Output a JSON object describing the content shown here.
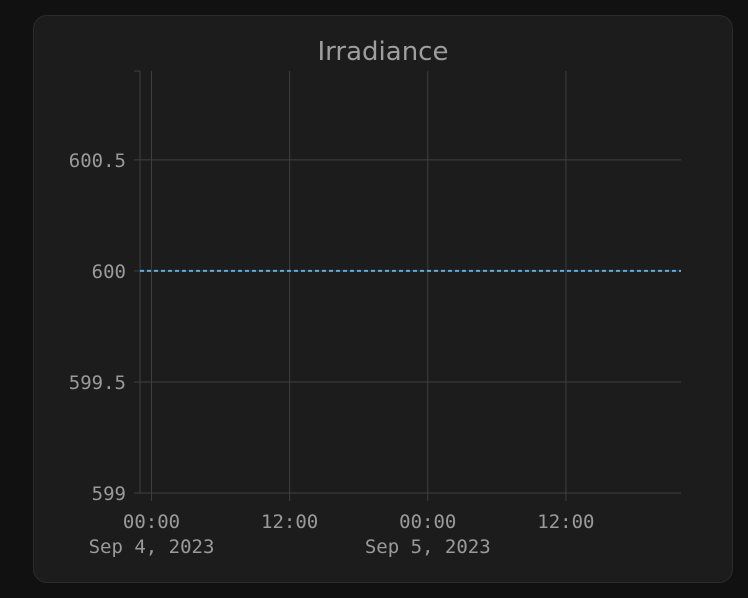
{
  "chart_data": {
    "type": "line",
    "title": "Irradiance",
    "xlabel": "",
    "ylabel": "",
    "x_range": [
      "2023-09-03T23:00",
      "2023-09-05T22:00"
    ],
    "ylim": [
      599,
      600.9
    ],
    "y_ticks": [
      {
        "value": 599,
        "label": "599"
      },
      {
        "value": 599.5,
        "label": "599.5"
      },
      {
        "value": 600,
        "label": "600"
      },
      {
        "value": 600.5,
        "label": "600.5"
      }
    ],
    "x_ticks": [
      {
        "value": "2023-09-04T00:00",
        "label": "00:00",
        "sublabel": "Sep 4, 2023"
      },
      {
        "value": "2023-09-04T12:00",
        "label": "12:00",
        "sublabel": ""
      },
      {
        "value": "2023-09-05T00:00",
        "label": "00:00",
        "sublabel": "Sep 5, 2023"
      },
      {
        "value": "2023-09-05T12:00",
        "label": "12:00",
        "sublabel": ""
      }
    ],
    "grid": true,
    "series": [
      {
        "color": "#5dade2",
        "dashed": true,
        "points": [
          {
            "x": "2023-09-03T23:00",
            "y": 600
          },
          {
            "x": "2023-09-05T22:00",
            "y": 600
          }
        ]
      }
    ]
  },
  "colors": {
    "background": "#111111",
    "card": "#1c1c1c",
    "grid": "#3f3f3f",
    "text": "#9a9a9a",
    "series": "#5dade2"
  }
}
